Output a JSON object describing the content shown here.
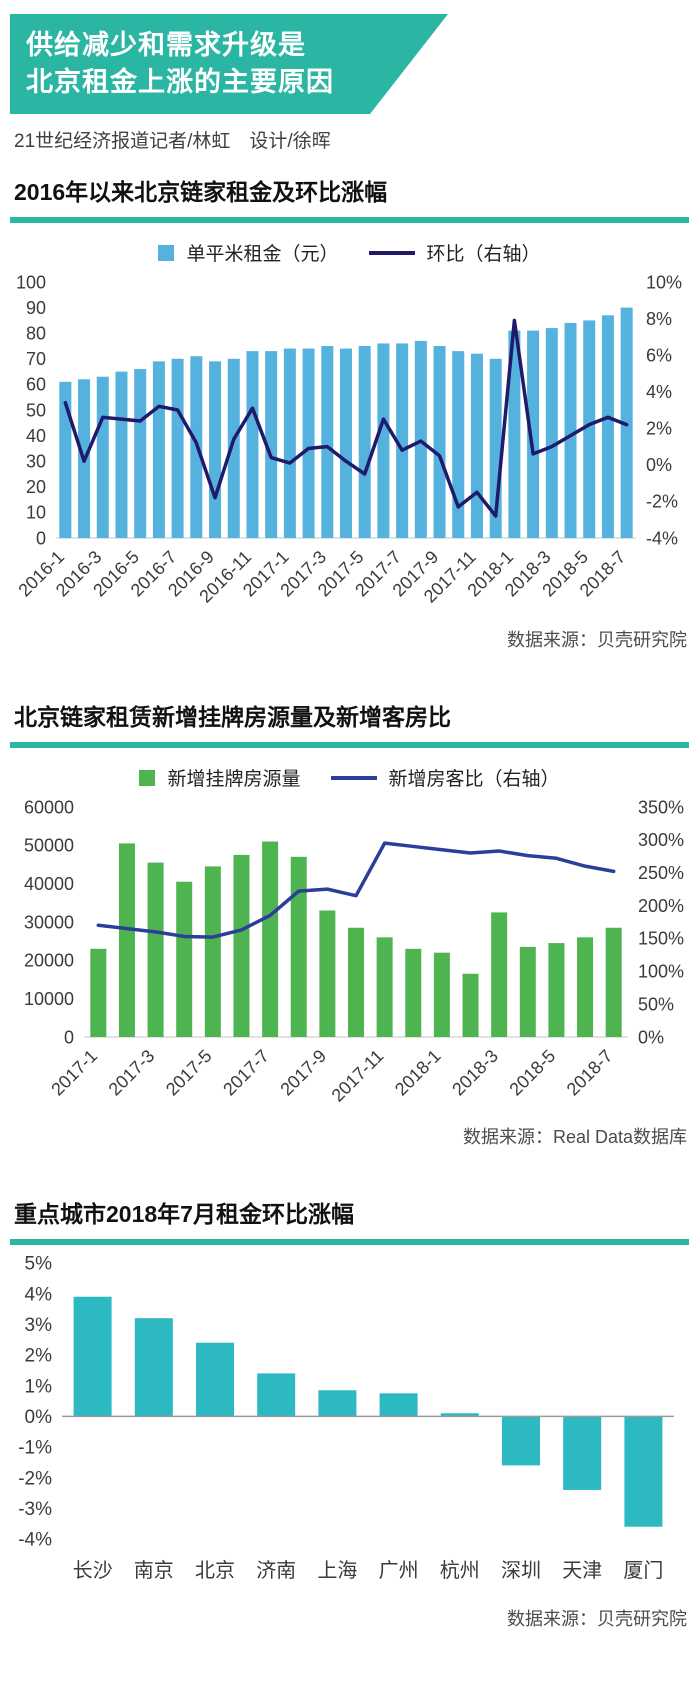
{
  "page": {
    "accent": "#2bb5a3",
    "background": "#ffffff"
  },
  "header": {
    "title_line1": "供给减少和需求升级是",
    "title_line2": "北京租金上涨的主要原因",
    "byline": "21世纪经济报道记者/林虹　设计/徐晖"
  },
  "chart_data": [
    {
      "type": "bar",
      "subtype": "bar+line-combo",
      "title": "2016年以来北京链家租金及环比涨幅",
      "legend": [
        {
          "kind": "bar",
          "label": "单平米租金（元）",
          "color": "#55b1dd"
        },
        {
          "kind": "line",
          "label": "环比（右轴）",
          "color": "#201a6b"
        }
      ],
      "categories": [
        "2016-1",
        "2016-2",
        "2016-3",
        "2016-4",
        "2016-5",
        "2016-6",
        "2016-7",
        "2016-8",
        "2016-9",
        "2016-10",
        "2016-11",
        "2016-12",
        "2017-1",
        "2017-2",
        "2017-3",
        "2017-4",
        "2017-5",
        "2017-6",
        "2017-7",
        "2017-8",
        "2017-9",
        "2017-10",
        "2017-11",
        "2017-12",
        "2018-1",
        "2018-2",
        "2018-3",
        "2018-4",
        "2018-5",
        "2018-6",
        "2018-7"
      ],
      "x_label_every": 2,
      "series": [
        {
          "name": "单平米租金（元）",
          "type": "bar",
          "axis": "left",
          "color": "#55b1dd",
          "values": [
            61,
            62,
            63,
            65,
            66,
            69,
            70,
            71,
            69,
            70,
            73,
            73,
            74,
            74,
            75,
            74,
            75,
            76,
            76,
            77,
            75,
            73,
            72,
            70,
            81,
            81,
            82,
            84,
            85,
            87,
            90
          ]
        },
        {
          "name": "环比（右轴）",
          "type": "line",
          "axis": "right",
          "color": "#201a6b",
          "values": [
            3.4,
            0.2,
            2.6,
            2.5,
            2.4,
            3.2,
            3.0,
            1.2,
            -1.8,
            1.4,
            3.1,
            0.4,
            0.1,
            0.9,
            1.0,
            0.2,
            -0.5,
            2.5,
            0.8,
            1.3,
            0.5,
            -2.3,
            -1.5,
            -2.8,
            7.9,
            0.6,
            1.0,
            1.6,
            2.2,
            2.6,
            2.2
          ]
        }
      ],
      "left_axis": {
        "min": 0,
        "max": 100,
        "tick_values": [
          0,
          10,
          20,
          30,
          40,
          50,
          60,
          70,
          80,
          90,
          100
        ],
        "tick_labels": [
          "0",
          "10",
          "20",
          "30",
          "40",
          "50",
          "60",
          "70",
          "80",
          "90",
          "100"
        ]
      },
      "right_axis": {
        "min": -4,
        "max": 10,
        "tick_values": [
          -4,
          -2,
          0,
          2,
          4,
          6,
          8,
          10
        ],
        "tick_labels": [
          "-4%",
          "-2%",
          "0%",
          "2%",
          "4%",
          "6%",
          "8%",
          "10%"
        ]
      },
      "source": "数据来源：贝壳研究院"
    },
    {
      "type": "bar",
      "subtype": "bar+line-combo",
      "title": "北京链家租赁新增挂牌房源量及新增客房比",
      "legend": [
        {
          "kind": "bar",
          "label": "新增挂牌房源量",
          "color": "#4db44f"
        },
        {
          "kind": "line",
          "label": "新增房客比（右轴）",
          "color": "#2b3e9a"
        }
      ],
      "categories": [
        "2017-1",
        "2017-2",
        "2017-3",
        "2017-4",
        "2017-5",
        "2017-6",
        "2017-7",
        "2017-8",
        "2017-9",
        "2017-10",
        "2017-11",
        "2017-12",
        "2018-1",
        "2018-2",
        "2018-3",
        "2018-4",
        "2018-5",
        "2018-6",
        "2018-7"
      ],
      "x_label_every": 2,
      "series": [
        {
          "name": "新增挂牌房源量",
          "type": "bar",
          "axis": "left",
          "color": "#4db44f",
          "values": [
            23000,
            50500,
            45500,
            40500,
            44500,
            47500,
            51000,
            47000,
            33000,
            28500,
            26000,
            23000,
            22000,
            16500,
            32500,
            23500,
            24500,
            26000,
            28500
          ]
        },
        {
          "name": "新增房客比（右轴）",
          "type": "line",
          "axis": "right",
          "color": "#2b3e9a",
          "values": [
            170,
            165,
            160,
            153,
            152,
            163,
            185,
            222,
            225,
            215,
            295,
            290,
            285,
            280,
            283,
            276,
            272,
            260,
            252
          ]
        }
      ],
      "left_axis": {
        "min": 0,
        "max": 60000,
        "tick_values": [
          0,
          10000,
          20000,
          30000,
          40000,
          50000,
          60000
        ],
        "tick_labels": [
          "0",
          "10000",
          "20000",
          "30000",
          "40000",
          "50000",
          "60000"
        ]
      },
      "right_axis": {
        "min": 0,
        "max": 350,
        "tick_values": [
          0,
          50,
          100,
          150,
          200,
          250,
          300,
          350
        ],
        "tick_labels": [
          "0%",
          "50%",
          "100%",
          "150%",
          "200%",
          "250%",
          "300%",
          "350%"
        ]
      },
      "source": "数据来源：Real Data数据库"
    },
    {
      "type": "bar",
      "title": "重点城市2018年7月租金环比涨幅",
      "categories": [
        "长沙",
        "南京",
        "北京",
        "济南",
        "上海",
        "广州",
        "杭州",
        "深圳",
        "天津",
        "厦门"
      ],
      "x_label_every": 1,
      "series": [
        {
          "name": "租金环比涨幅",
          "type": "bar",
          "axis": "left",
          "color": "#2db9c2",
          "values": [
            3.9,
            3.2,
            2.4,
            1.4,
            0.85,
            0.75,
            0.1,
            -1.6,
            -2.4,
            -3.6
          ]
        }
      ],
      "left_axis": {
        "min": -4,
        "max": 5,
        "tick_values": [
          5,
          4,
          3,
          2,
          1,
          0,
          -1,
          -2,
          -3,
          -4
        ],
        "tick_labels": [
          "5%",
          "4%",
          "3%",
          "2%",
          "1%",
          "0%",
          "-1%",
          "-2%",
          "-3%",
          "-4%"
        ]
      },
      "source": "数据来源：贝壳研究院"
    }
  ]
}
